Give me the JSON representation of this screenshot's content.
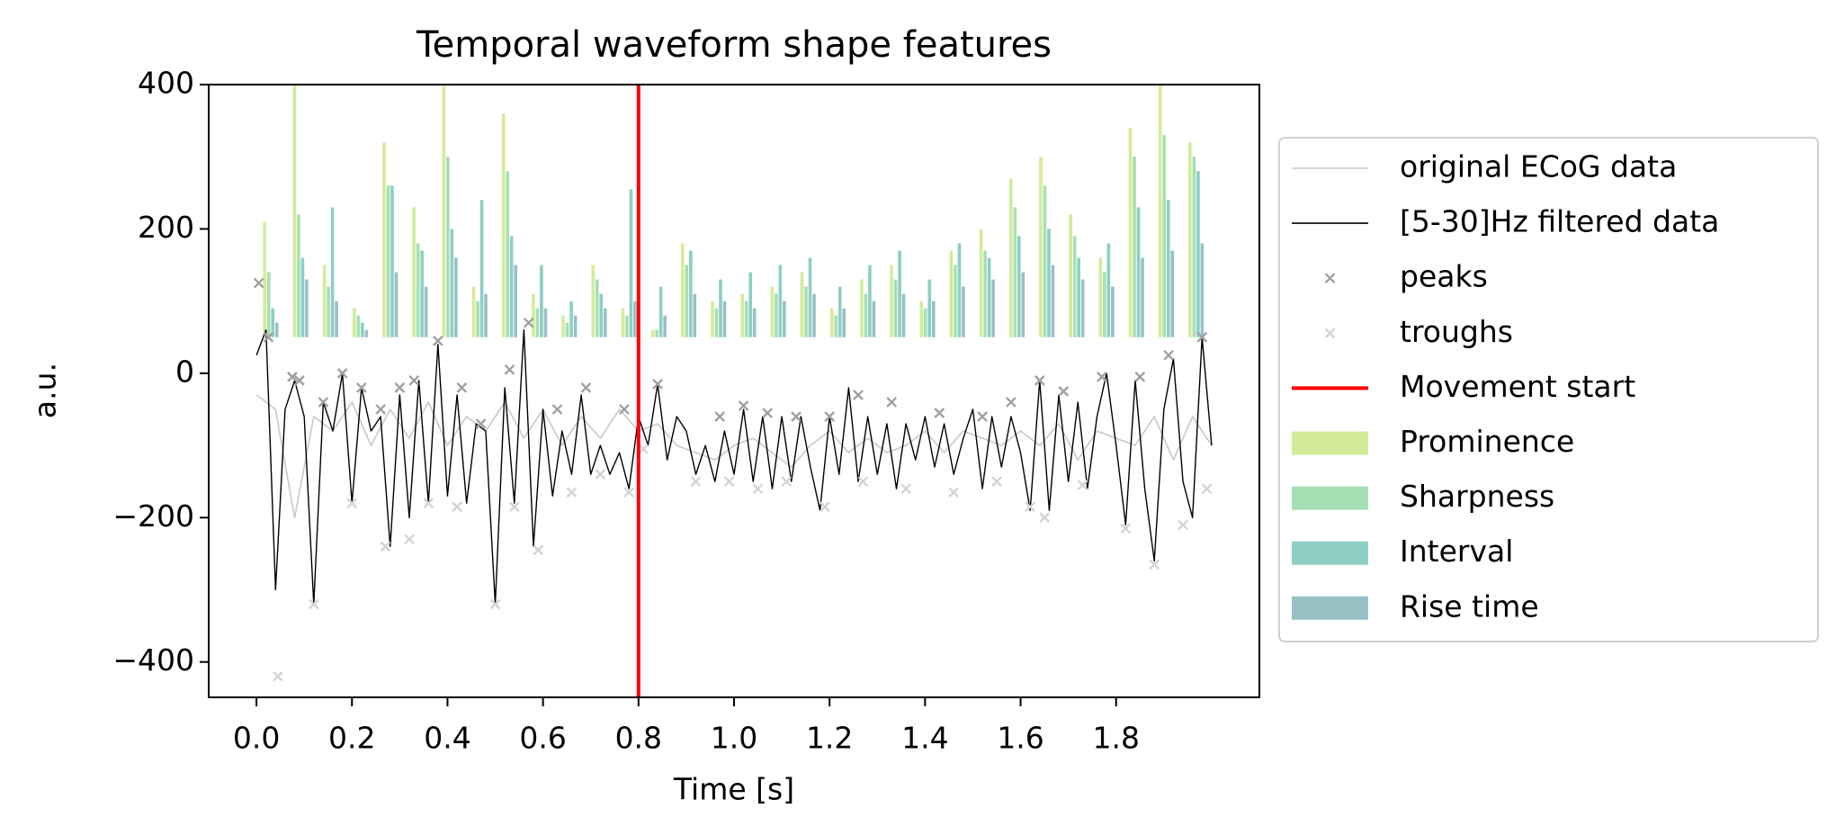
{
  "chart_data": {
    "type": "line",
    "title": "Temporal waveform shape features",
    "xlabel": "Time [s]",
    "ylabel": "a.u.",
    "xlim": [
      -0.1,
      2.1
    ],
    "ylim": [
      -449,
      400
    ],
    "xticks": [
      {
        "value": 0,
        "label": "0.0"
      },
      0.2,
      0.4,
      0.6,
      0.8,
      {
        "value": 1,
        "label": "1.0"
      },
      1.2,
      1.4,
      1.6,
      1.8
    ],
    "yticks": [
      {
        "value": 400,
        "label": "400"
      },
      {
        "value": 200,
        "label": "200"
      },
      0,
      {
        "value": -200,
        "label": "−200"
      },
      {
        "value": -400,
        "label": "−400"
      }
    ],
    "bar_bottom": 50,
    "bar_x": [
      0.03,
      0.0925,
      0.155,
      0.2175,
      0.28,
      0.3425,
      0.405,
      0.4675,
      0.53,
      0.5925,
      0.655,
      0.7175,
      0.78,
      0.8425,
      0.905,
      0.9675,
      1.03,
      1.0925,
      1.155,
      1.2175,
      1.28,
      1.3425,
      1.405,
      1.4675,
      1.53,
      1.5925,
      1.655,
      1.7175,
      1.78,
      1.8425,
      1.905,
      1.9675
    ],
    "series": [
      {
        "name": "original ECoG data",
        "kind": "line",
        "color": "#c8c8c8",
        "x_step": 0.04,
        "values": [
          -30,
          -50,
          -200,
          -60,
          -80,
          -40,
          -100,
          -50,
          -90,
          -40,
          -100,
          -60,
          -80,
          -40,
          -90,
          -50,
          -100,
          -60,
          -90,
          -50,
          -80,
          -70,
          -100,
          -110,
          -120,
          -100,
          -90,
          -110,
          -130,
          -100,
          -80,
          -110,
          -90,
          -110,
          -100,
          -80,
          -110,
          -80,
          -90,
          -100,
          -80,
          -100,
          -70,
          -120,
          -80,
          -90,
          -100,
          -60,
          -120,
          -60,
          -100
        ]
      },
      {
        "name": "[5-30]Hz filtered data",
        "kind": "line",
        "color": "#000000",
        "x_step": 0.02,
        "values": [
          25,
          60,
          -300,
          -50,
          -10,
          -60,
          -320,
          -40,
          -80,
          0,
          -180,
          -20,
          -80,
          -60,
          -240,
          -30,
          -200,
          -10,
          -180,
          40,
          -170,
          -30,
          -180,
          -70,
          -80,
          -320,
          -20,
          -180,
          60,
          -240,
          -50,
          -170,
          -80,
          -140,
          -30,
          -140,
          -100,
          -140,
          -110,
          -160,
          -60,
          -100,
          -15,
          -120,
          -60,
          -80,
          -140,
          -100,
          -150,
          -80,
          -140,
          -50,
          -150,
          -60,
          -160,
          -60,
          -150,
          -60,
          -130,
          -190,
          -60,
          -140,
          -20,
          -150,
          -60,
          -140,
          -70,
          -160,
          -70,
          -120,
          -60,
          -130,
          -70,
          -140,
          -90,
          -50,
          -160,
          -60,
          -130,
          -60,
          -110,
          -190,
          -10,
          -190,
          -30,
          -150,
          -40,
          -160,
          -60,
          0,
          -100,
          -210,
          -10,
          -160,
          -260,
          -50,
          20,
          -150,
          -200,
          50,
          -100
        ]
      },
      {
        "name": "peaks",
        "kind": "scatter",
        "color": "#a0a0a0",
        "x": [
          0.005,
          0.025,
          0.075,
          0.09,
          0.14,
          0.18,
          0.22,
          0.26,
          0.3,
          0.33,
          0.38,
          0.43,
          0.47,
          0.53,
          0.57,
          0.63,
          0.69,
          0.77,
          0.84,
          0.97,
          1.02,
          1.07,
          1.13,
          1.2,
          1.26,
          1.33,
          1.43,
          1.52,
          1.58,
          1.64,
          1.69,
          1.77,
          1.85,
          1.91,
          1.98
        ],
        "values": [
          125,
          50,
          -5,
          -10,
          -40,
          0,
          -20,
          -50,
          -20,
          -10,
          45,
          -20,
          -70,
          5,
          70,
          -50,
          -20,
          -50,
          -15,
          -60,
          -45,
          -55,
          -60,
          -60,
          -30,
          -40,
          -55,
          -60,
          -40,
          -10,
          -25,
          -5,
          -5,
          25,
          50
        ]
      },
      {
        "name": "troughs",
        "kind": "scatter",
        "color": "#d3d3d3",
        "x": [
          0.045,
          0.12,
          0.2,
          0.27,
          0.32,
          0.36,
          0.42,
          0.5,
          0.54,
          0.59,
          0.66,
          0.72,
          0.78,
          0.81,
          0.92,
          0.99,
          1.05,
          1.11,
          1.19,
          1.27,
          1.36,
          1.46,
          1.55,
          1.62,
          1.65,
          1.73,
          1.82,
          1.88,
          1.94,
          1.99
        ],
        "values": [
          -420,
          -320,
          -180,
          -240,
          -230,
          -180,
          -185,
          -320,
          -185,
          -245,
          -165,
          -140,
          -165,
          -105,
          -150,
          -150,
          -160,
          -150,
          -185,
          -150,
          -160,
          -165,
          -150,
          -185,
          -200,
          -155,
          -215,
          -265,
          -210,
          -160
        ]
      },
      {
        "name": "Movement start",
        "kind": "vline",
        "color": "#ff0000",
        "x": 0.8
      },
      {
        "name": "Prominence",
        "kind": "bar",
        "color": "#d2ec9b",
        "values": [
          210,
          400,
          150,
          90,
          320,
          230,
          400,
          120,
          360,
          110,
          80,
          150,
          90,
          60,
          180,
          100,
          110,
          120,
          140,
          90,
          130,
          150,
          100,
          170,
          200,
          270,
          300,
          220,
          160,
          340,
          400,
          320
        ]
      },
      {
        "name": "Sharpness",
        "kind": "bar",
        "color": "#a6dfb3",
        "values": [
          140,
          220,
          120,
          80,
          260,
          180,
          300,
          100,
          280,
          90,
          70,
          130,
          80,
          60,
          150,
          90,
          100,
          110,
          120,
          80,
          110,
          130,
          90,
          150,
          170,
          230,
          260,
          190,
          140,
          300,
          330,
          300
        ]
      },
      {
        "name": "Interval",
        "kind": "bar",
        "color": "#8dcfc3",
        "values": [
          90,
          160,
          230,
          70,
          260,
          170,
          200,
          240,
          190,
          150,
          100,
          110,
          255,
          120,
          170,
          130,
          140,
          150,
          160,
          120,
          150,
          170,
          130,
          180,
          160,
          190,
          200,
          160,
          180,
          230,
          240,
          280
        ]
      },
      {
        "name": "Rise time",
        "kind": "bar",
        "color": "#98c1c6",
        "values": [
          70,
          130,
          100,
          60,
          140,
          120,
          160,
          110,
          150,
          90,
          80,
          90,
          100,
          80,
          110,
          100,
          90,
          100,
          110,
          90,
          100,
          110,
          100,
          120,
          130,
          140,
          150,
          130,
          120,
          160,
          170,
          180
        ]
      }
    ]
  }
}
